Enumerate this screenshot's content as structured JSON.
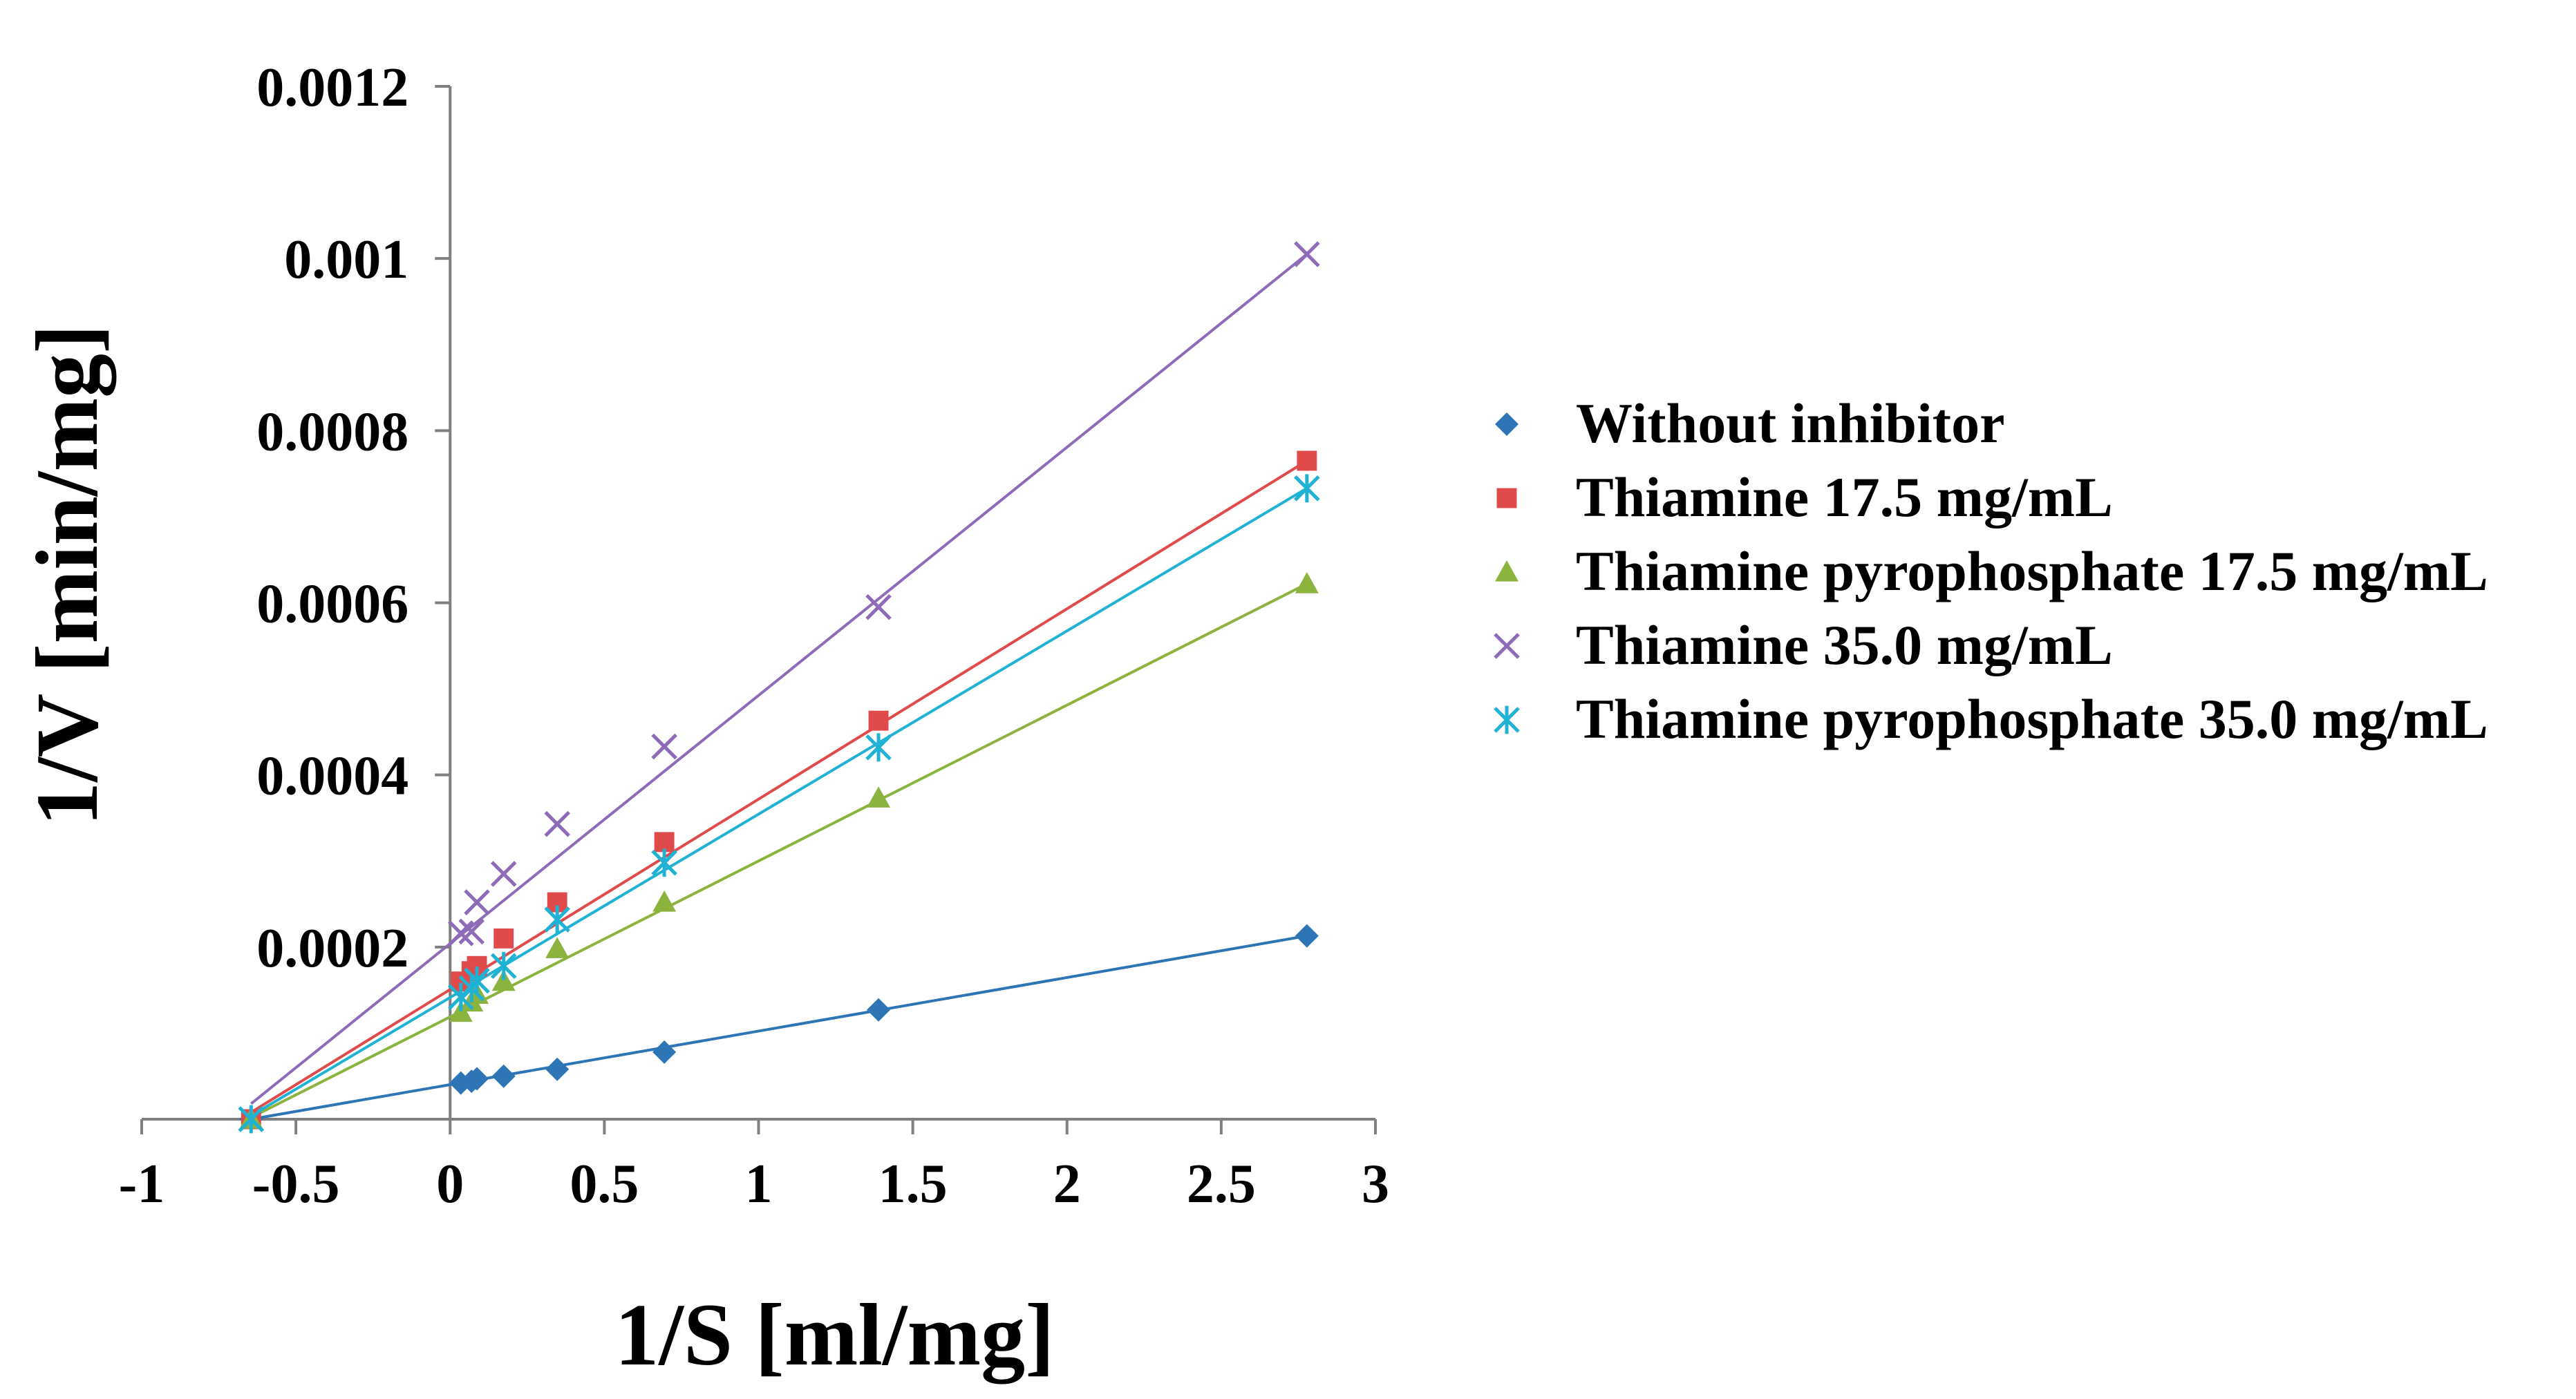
{
  "chart_data": {
    "type": "scatter",
    "xlabel": "1/S [ml/mg]",
    "ylabel": "1/V [min/mg]",
    "xlim": [
      -1,
      3
    ],
    "ylim": [
      0,
      0.0012
    ],
    "x_ticks": [
      "-1",
      "-0.5",
      "0",
      "0.5",
      "1",
      "1.5",
      "2",
      "2.5",
      "3"
    ],
    "y_ticks": [
      "0.0002",
      "0.0004",
      "0.0006",
      "0.0008",
      "0.001",
      "0.0012"
    ],
    "legend_position": "right",
    "series": [
      {
        "name": "Without inhibitor",
        "marker": "diamond",
        "color": "#2E75B6",
        "x": [
          0.0348,
          0.0694,
          0.0869,
          0.1736,
          0.3472,
          0.6944,
          1.3889,
          2.7778
        ],
        "y": [
          4.2e-05,
          4.4e-05,
          4.7e-05,
          5e-05,
          5.8e-05,
          7.8e-05,
          0.000127,
          0.000213
        ],
        "intercept_point": {
          "x": -0.6452,
          "y": 0
        },
        "fit": {
          "x": [
            -0.6452,
            2.7778
          ],
          "y": [
            0,
            0.000213
          ]
        }
      },
      {
        "name": "Thiamine 17.5 mg/mL",
        "marker": "square",
        "color": "#E04A4A",
        "x": [
          0.0348,
          0.0694,
          0.0869,
          0.1736,
          0.3472,
          0.6944,
          1.3889,
          2.7778
        ],
        "y": [
          0.00016,
          0.000172,
          0.000178,
          0.00021,
          0.000252,
          0.000322,
          0.000463,
          0.000765
        ],
        "intercept_point": {
          "x": -0.6452,
          "y": 0
        },
        "fit": {
          "x": [
            -0.6452,
            2.7778
          ],
          "y": [
            8e-06,
            0.000765
          ]
        }
      },
      {
        "name": "Thiamine pyrophosphate 17.5 mg/mL",
        "marker": "triangle",
        "color": "#8DB33F",
        "x": [
          0.0348,
          0.0694,
          0.0869,
          0.1736,
          0.3472,
          0.6944,
          1.3889,
          2.7778
        ],
        "y": [
          0.000124,
          0.000136,
          0.000145,
          0.00016,
          0.000198,
          0.000252,
          0.000373,
          0.000622
        ],
        "intercept_point": {
          "x": -0.6452,
          "y": 0
        },
        "fit": {
          "x": [
            -0.6452,
            2.7778
          ],
          "y": [
            2e-06,
            0.000622
          ]
        }
      },
      {
        "name": "Thiamine 35.0 mg/mL",
        "marker": "x",
        "color": "#8E6BB8",
        "x": [
          0.0348,
          0.0694,
          0.0869,
          0.1736,
          0.3472,
          0.6944,
          1.3889,
          2.7778
        ],
        "y": [
          0.000216,
          0.000218,
          0.000252,
          0.000285,
          0.000343,
          0.000433,
          0.000595,
          0.001005
        ],
        "intercept_point": {
          "x": -0.6452,
          "y": 0
        },
        "fit": {
          "x": [
            -0.6452,
            2.7778
          ],
          "y": [
            1.8e-05,
            0.001005
          ]
        }
      },
      {
        "name": "Thiamine pyrophosphate 35.0 mg/mL",
        "marker": "asterisk",
        "color": "#1FB2D4",
        "x": [
          0.0348,
          0.0694,
          0.0869,
          0.1736,
          0.3472,
          0.6944,
          1.3889,
          2.7778
        ],
        "y": [
          0.000142,
          0.000152,
          0.000161,
          0.000178,
          0.000232,
          0.000298,
          0.000432,
          0.000733
        ],
        "intercept_point": {
          "x": -0.6452,
          "y": 0
        },
        "fit": {
          "x": [
            -0.6452,
            2.7778
          ],
          "y": [
            4e-06,
            0.000733
          ]
        }
      }
    ]
  }
}
